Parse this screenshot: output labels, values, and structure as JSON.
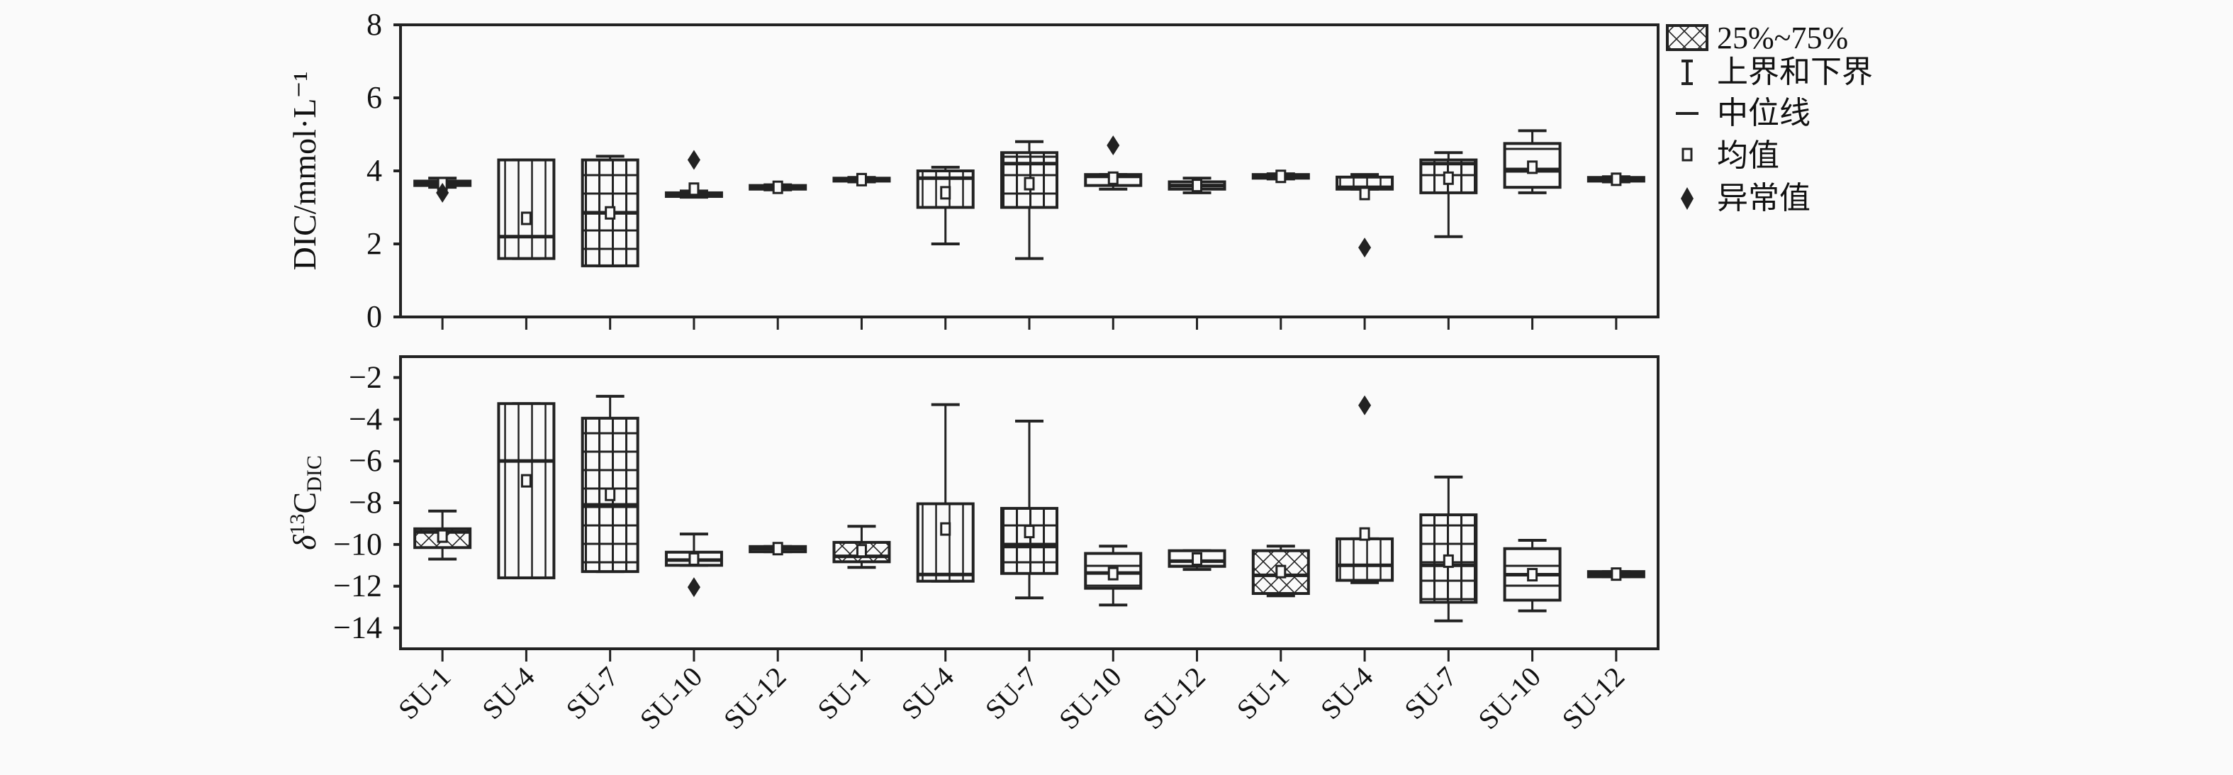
{
  "legend": {
    "position": "right",
    "entries": [
      {
        "label": "25%~75%",
        "icon": "crosshatch-box-icon"
      },
      {
        "label": "上界和下界",
        "icon": "whisker-icon"
      },
      {
        "label": "中位线",
        "icon": "median-line-icon"
      },
      {
        "label": "均值",
        "icon": "mean-square-icon"
      },
      {
        "label": "异常值",
        "icon": "outlier-diamond-icon"
      }
    ]
  },
  "chart_data": [
    {
      "type": "box",
      "title": "",
      "ylabel": "DIC/mmol·L⁻¹",
      "ylim": [
        0,
        8
      ],
      "yticks": [
        "0",
        "2",
        "4",
        "6",
        "8"
      ],
      "ytick_values": [
        0,
        2,
        4,
        6,
        8
      ],
      "grid": false,
      "categories": [
        "SU-1",
        "SU-4",
        "SU-7",
        "SU-10",
        "SU-12",
        "SU-1",
        "SU-4",
        "SU-7",
        "SU-10",
        "SU-12",
        "SU-1",
        "SU-4",
        "SU-7",
        "SU-10",
        "SU-12"
      ],
      "boxes": [
        {
          "q1": 3.6,
          "q3": 3.72,
          "median": 3.65,
          "mean": 3.65,
          "low": 3.55,
          "high": 3.8,
          "outliers": [
            3.4
          ]
        },
        {
          "q1": 1.6,
          "q3": 4.3,
          "median": 2.2,
          "mean": 2.7,
          "low": 1.6,
          "high": 4.3,
          "outliers": []
        },
        {
          "q1": 1.4,
          "q3": 4.3,
          "median": 2.85,
          "mean": 2.85,
          "low": 1.4,
          "high": 4.4,
          "outliers": []
        },
        {
          "q1": 3.3,
          "q3": 3.4,
          "median": 3.35,
          "mean": 3.5,
          "low": 3.28,
          "high": 3.45,
          "outliers": [
            4.3
          ]
        },
        {
          "q1": 3.5,
          "q3": 3.6,
          "median": 3.55,
          "mean": 3.55,
          "low": 3.48,
          "high": 3.62,
          "outliers": []
        },
        {
          "q1": 3.72,
          "q3": 3.8,
          "median": 3.76,
          "mean": 3.76,
          "low": 3.7,
          "high": 3.82,
          "outliers": []
        },
        {
          "q1": 3.0,
          "q3": 4.0,
          "median": 3.8,
          "mean": 3.4,
          "low": 2.0,
          "high": 4.1,
          "outliers": []
        },
        {
          "q1": 3.0,
          "q3": 4.5,
          "median": 4.2,
          "mean": 3.65,
          "low": 1.6,
          "high": 4.8,
          "outliers": []
        },
        {
          "q1": 3.6,
          "q3": 3.9,
          "median": 3.85,
          "mean": 3.8,
          "low": 3.5,
          "high": 3.9,
          "outliers": [
            4.7
          ]
        },
        {
          "q1": 3.5,
          "q3": 3.7,
          "median": 3.6,
          "mean": 3.6,
          "low": 3.4,
          "high": 3.8,
          "outliers": []
        },
        {
          "q1": 3.8,
          "q3": 3.9,
          "median": 3.85,
          "mean": 3.85,
          "low": 3.78,
          "high": 3.92,
          "outliers": []
        },
        {
          "q1": 3.5,
          "q3": 3.83,
          "median": 3.55,
          "mean": 3.38,
          "low": 3.5,
          "high": 3.9,
          "outliers": [
            1.9
          ]
        },
        {
          "q1": 3.4,
          "q3": 4.3,
          "median": 4.2,
          "mean": 3.8,
          "low": 2.2,
          "high": 4.5,
          "outliers": []
        },
        {
          "q1": 3.55,
          "q3": 4.75,
          "median": 4.0,
          "mean": 4.1,
          "low": 3.4,
          "high": 5.1,
          "outliers": []
        },
        {
          "q1": 3.72,
          "q3": 3.82,
          "median": 3.77,
          "mean": 3.77,
          "low": 3.7,
          "high": 3.84,
          "outliers": []
        }
      ]
    },
    {
      "type": "box",
      "title": "",
      "ylabel": "δ13CDIC",
      "ylabel_parts": {
        "delta": "δ",
        "sup": "13",
        "main": "C",
        "sub": "DIC"
      },
      "ylim": [
        -15,
        -1
      ],
      "yticks": [
        "−14",
        "−12",
        "−10",
        "−8",
        "−6",
        "−4",
        "−2"
      ],
      "ytick_values": [
        -14,
        -12,
        -10,
        -8,
        -6,
        -4,
        -2
      ],
      "grid": false,
      "categories": [
        "SU-1",
        "SU-4",
        "SU-7",
        "SU-10",
        "SU-12",
        "SU-1",
        "SU-4",
        "SU-7",
        "SU-10",
        "SU-12",
        "SU-1",
        "SU-4",
        "SU-7",
        "SU-10",
        "SU-12"
      ],
      "boxes": [
        {
          "q1": -10.15,
          "q3": -9.25,
          "median": -9.4,
          "mean": -9.6,
          "low": -10.7,
          "high": -8.4,
          "outliers": []
        },
        {
          "q1": -11.6,
          "q3": -3.25,
          "median": -6.0,
          "mean": -6.95,
          "low": -11.6,
          "high": -3.25,
          "outliers": []
        },
        {
          "q1": -11.3,
          "q3": -3.95,
          "median": -8.1,
          "mean": -7.6,
          "low": -11.3,
          "high": -2.9,
          "outliers": []
        },
        {
          "q1": -11.0,
          "q3": -10.37,
          "median": -10.75,
          "mean": -10.7,
          "low": -11.0,
          "high": -9.5,
          "outliers": [
            -12.05
          ]
        },
        {
          "q1": -10.35,
          "q3": -10.1,
          "median": -10.2,
          "mean": -10.2,
          "low": -10.35,
          "high": -10.1,
          "outliers": []
        },
        {
          "q1": -10.83,
          "q3": -9.9,
          "median": -10.57,
          "mean": -10.3,
          "low": -11.1,
          "high": -9.13,
          "outliers": []
        },
        {
          "q1": -11.76,
          "q3": -8.05,
          "median": -11.44,
          "mean": -9.26,
          "low": -11.76,
          "high": -3.3,
          "outliers": []
        },
        {
          "q1": -11.39,
          "q3": -8.27,
          "median": -10.1,
          "mean": -9.38,
          "low": -12.56,
          "high": -4.09,
          "outliers": []
        },
        {
          "q1": -12.1,
          "q3": -10.43,
          "median": -11.37,
          "mean": -11.4,
          "low": -12.9,
          "high": -10.08,
          "outliers": []
        },
        {
          "q1": -11.05,
          "q3": -10.3,
          "median": -10.8,
          "mean": -10.7,
          "low": -11.2,
          "high": -10.3,
          "outliers": []
        },
        {
          "q1": -12.35,
          "q3": -10.3,
          "median": -11.48,
          "mean": -11.3,
          "low": -12.46,
          "high": -10.08,
          "outliers": []
        },
        {
          "q1": -11.72,
          "q3": -9.73,
          "median": -11.0,
          "mean": -9.5,
          "low": -11.83,
          "high": -9.73,
          "outliers": [
            -3.33
          ]
        },
        {
          "q1": -12.77,
          "q3": -8.58,
          "median": -11.0,
          "mean": -10.8,
          "low": -13.66,
          "high": -6.77,
          "outliers": []
        },
        {
          "q1": -12.67,
          "q3": -10.2,
          "median": -11.45,
          "mean": -11.45,
          "low": -13.18,
          "high": -9.8,
          "outliers": []
        },
        {
          "q1": -11.55,
          "q3": -11.3,
          "median": -11.42,
          "mean": -11.42,
          "low": -11.55,
          "high": -11.3,
          "outliers": []
        }
      ]
    }
  ]
}
